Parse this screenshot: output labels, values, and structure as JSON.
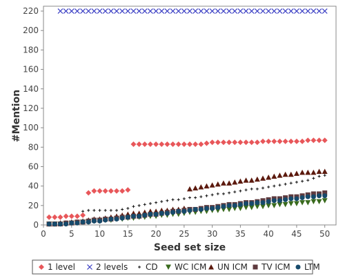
{
  "chart_data": {
    "type": "scatter",
    "title": "",
    "xlabel": "Seed set size",
    "ylabel": "#Mention",
    "xlim": [
      0,
      52
    ],
    "ylim": [
      0,
      225
    ],
    "xticks": [
      0,
      5,
      10,
      15,
      20,
      25,
      30,
      35,
      40,
      45,
      50
    ],
    "yticks": [
      0,
      20,
      40,
      60,
      80,
      100,
      120,
      140,
      160,
      180,
      200,
      220
    ],
    "grid": false,
    "legend_position": "bottom",
    "series": [
      {
        "name": "1 level",
        "color": "#e8575a",
        "marker": "diamond",
        "x": [
          1,
          2,
          3,
          4,
          5,
          6,
          7,
          8,
          9,
          10,
          11,
          12,
          13,
          14,
          15,
          16,
          17,
          18,
          19,
          20,
          21,
          22,
          23,
          24,
          25,
          26,
          27,
          28,
          29,
          30,
          31,
          32,
          33,
          34,
          35,
          36,
          37,
          38,
          39,
          40,
          41,
          42,
          43,
          44,
          45,
          46,
          47,
          48,
          49,
          50
        ],
        "y": [
          8,
          8,
          8,
          9,
          9,
          9,
          10,
          33,
          35,
          35,
          35,
          35,
          35,
          35,
          36,
          83,
          83,
          83,
          83,
          83,
          83,
          83,
          83,
          83,
          83,
          83,
          83,
          83,
          84,
          85,
          85,
          85,
          85,
          85,
          85,
          85,
          85,
          85,
          86,
          86,
          86,
          86,
          86,
          86,
          86,
          86,
          87,
          87,
          87,
          87
        ]
      },
      {
        "name": "2 levels",
        "color": "#3b3fc4",
        "marker": "x",
        "x": [
          3,
          4,
          5,
          6,
          7,
          8,
          9,
          10,
          11,
          12,
          13,
          14,
          15,
          16,
          17,
          18,
          19,
          20,
          21,
          22,
          23,
          24,
          25,
          26,
          27,
          28,
          29,
          30,
          31,
          32,
          33,
          34,
          35,
          36,
          37,
          38,
          39,
          40,
          41,
          42,
          43,
          44,
          45,
          46,
          47,
          48,
          49,
          50
        ],
        "y": [
          220,
          220,
          220,
          220,
          220,
          220,
          220,
          220,
          220,
          220,
          220,
          220,
          220,
          220,
          220,
          220,
          220,
          220,
          220,
          220,
          220,
          220,
          220,
          220,
          220,
          220,
          220,
          220,
          220,
          220,
          220,
          220,
          220,
          220,
          220,
          220,
          220,
          220,
          220,
          220,
          220,
          220,
          220,
          220,
          220,
          220,
          220,
          220
        ]
      },
      {
        "name": "CD",
        "color": "#111111",
        "marker": "plus",
        "x": [
          1,
          2,
          3,
          4,
          5,
          6,
          7,
          8,
          9,
          10,
          11,
          12,
          13,
          14,
          15,
          16,
          17,
          18,
          19,
          20,
          21,
          22,
          23,
          24,
          25,
          26,
          27,
          28,
          29,
          30,
          31,
          32,
          33,
          34,
          35,
          36,
          37,
          38,
          39,
          40,
          41,
          42,
          43,
          44,
          45,
          46,
          47,
          48,
          49,
          50
        ],
        "y": [
          1,
          2,
          2,
          3,
          3,
          3,
          14,
          15,
          15,
          15,
          15,
          15,
          15,
          16,
          17,
          19,
          20,
          21,
          22,
          23,
          24,
          25,
          26,
          26,
          27,
          28,
          28,
          29,
          30,
          31,
          32,
          32,
          33,
          34,
          35,
          36,
          37,
          37,
          38,
          39,
          40,
          41,
          42,
          43,
          44,
          45,
          46,
          48,
          50,
          51
        ]
      },
      {
        "name": "WC ICM",
        "color": "#3a6b1e",
        "marker": "triangle-down",
        "x": [
          1,
          2,
          3,
          4,
          5,
          6,
          7,
          8,
          9,
          10,
          11,
          12,
          13,
          14,
          15,
          16,
          17,
          18,
          19,
          20,
          21,
          22,
          23,
          24,
          25,
          26,
          27,
          28,
          29,
          30,
          31,
          32,
          33,
          34,
          35,
          36,
          37,
          38,
          39,
          40,
          41,
          42,
          43,
          44,
          45,
          46,
          47,
          48,
          49,
          50
        ],
        "y": [
          1,
          1,
          1,
          1,
          2,
          2,
          3,
          3,
          4,
          4,
          5,
          5,
          6,
          6,
          7,
          7,
          8,
          8,
          9,
          9,
          10,
          10,
          11,
          11,
          12,
          13,
          13,
          14,
          14,
          15,
          15,
          16,
          16,
          17,
          17,
          18,
          18,
          19,
          19,
          20,
          20,
          21,
          21,
          22,
          22,
          23,
          23,
          24,
          24,
          25
        ]
      },
      {
        "name": "UN ICM",
        "color": "#5c1a0e",
        "marker": "triangle-up",
        "x": [
          1,
          2,
          3,
          4,
          5,
          6,
          7,
          8,
          9,
          10,
          11,
          12,
          13,
          14,
          15,
          16,
          17,
          18,
          19,
          20,
          21,
          22,
          23,
          24,
          25,
          26,
          27,
          28,
          29,
          30,
          31,
          32,
          33,
          34,
          35,
          36,
          37,
          38,
          39,
          40,
          41,
          42,
          43,
          44,
          45,
          46,
          47,
          48,
          49,
          50
        ],
        "y": [
          1,
          1,
          2,
          2,
          3,
          3,
          4,
          5,
          6,
          6,
          7,
          8,
          9,
          10,
          11,
          12,
          12,
          13,
          14,
          14,
          15,
          15,
          16,
          16,
          17,
          37,
          38,
          39,
          40,
          41,
          42,
          43,
          43,
          44,
          45,
          46,
          46,
          47,
          48,
          49,
          50,
          51,
          52,
          52,
          53,
          54,
          54,
          54,
          55,
          55
        ]
      },
      {
        "name": "TV ICM",
        "color": "#5e3a3e",
        "marker": "square",
        "x": [
          1,
          2,
          3,
          4,
          5,
          6,
          7,
          8,
          9,
          10,
          11,
          12,
          13,
          14,
          15,
          16,
          17,
          18,
          19,
          20,
          21,
          22,
          23,
          24,
          25,
          26,
          27,
          28,
          29,
          30,
          31,
          32,
          33,
          34,
          35,
          36,
          37,
          38,
          39,
          40,
          41,
          42,
          43,
          44,
          45,
          46,
          47,
          48,
          49,
          50
        ],
        "y": [
          1,
          1,
          1,
          2,
          2,
          3,
          3,
          4,
          5,
          5,
          6,
          6,
          7,
          8,
          8,
          9,
          9,
          10,
          11,
          11,
          12,
          13,
          14,
          14,
          15,
          16,
          16,
          17,
          18,
          18,
          19,
          20,
          21,
          21,
          22,
          23,
          23,
          24,
          25,
          26,
          27,
          27,
          28,
          29,
          29,
          30,
          31,
          32,
          32,
          33
        ]
      },
      {
        "name": "LTM",
        "color": "#174a6b",
        "marker": "circle",
        "x": [
          1,
          2,
          3,
          4,
          5,
          6,
          7,
          8,
          9,
          10,
          11,
          12,
          13,
          14,
          15,
          16,
          17,
          18,
          19,
          20,
          21,
          22,
          23,
          24,
          25,
          26,
          27,
          28,
          29,
          30,
          31,
          32,
          33,
          34,
          35,
          36,
          37,
          38,
          39,
          40,
          41,
          42,
          43,
          44,
          45,
          46,
          47,
          48,
          49,
          50
        ],
        "y": [
          1,
          1,
          1,
          1,
          2,
          2,
          3,
          3,
          4,
          4,
          5,
          6,
          6,
          7,
          8,
          9,
          9,
          10,
          11,
          11,
          12,
          12,
          13,
          14,
          14,
          15,
          16,
          16,
          17,
          17,
          18,
          19,
          20,
          20,
          21,
          22,
          22,
          23,
          23,
          24,
          25,
          25,
          26,
          27,
          27,
          28,
          29,
          29,
          30,
          30
        ]
      }
    ]
  }
}
